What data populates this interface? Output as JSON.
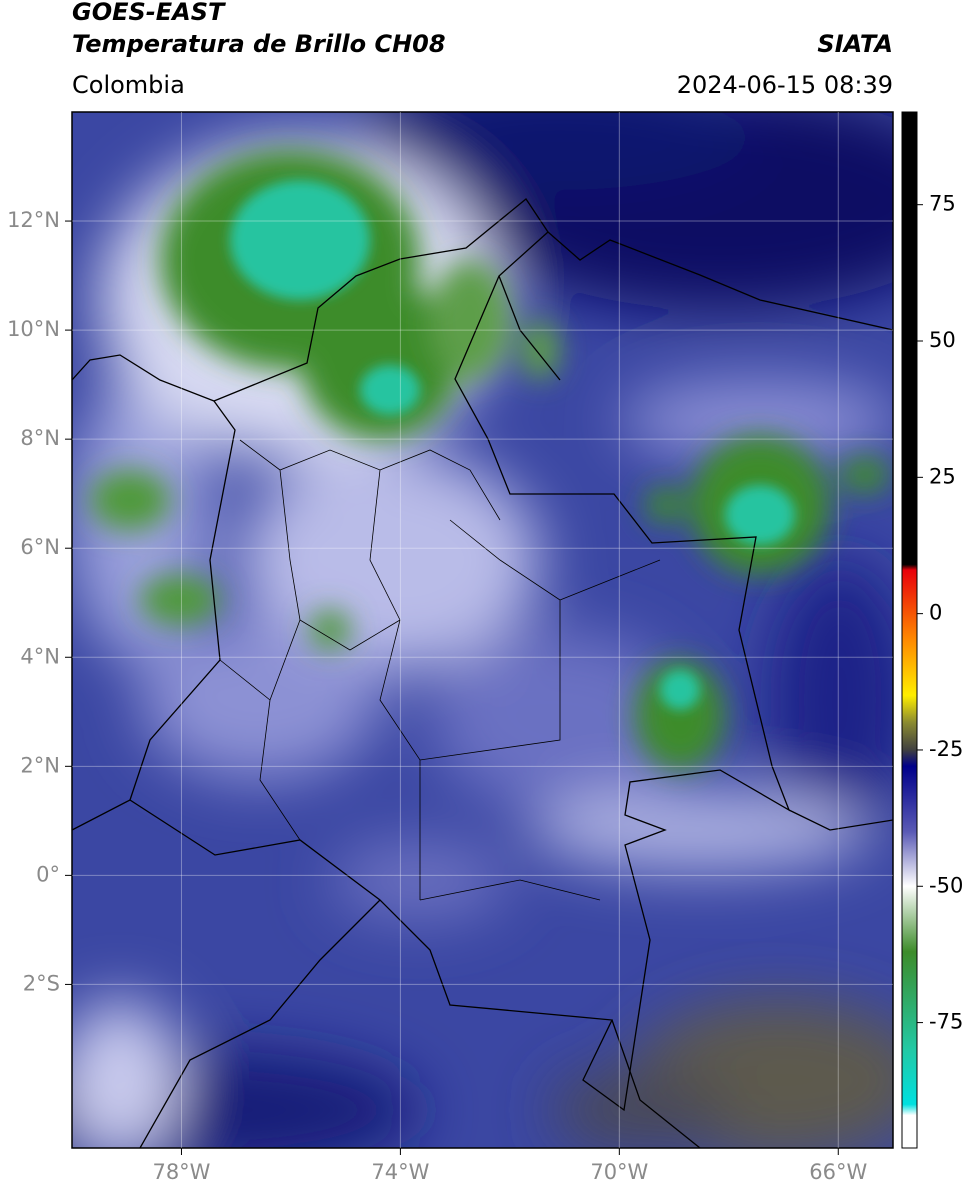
{
  "chart_data": {
    "type": "map",
    "title": "GOES-EAST",
    "subtitle": "Temperatura de Brillo CH08",
    "region": "Colombia",
    "source": "SIATA",
    "timestamp": "2024-06-15 08:39",
    "xlim": [
      -80,
      -65
    ],
    "ylim": [
      -5,
      14
    ],
    "xticks": [
      {
        "value": -78,
        "label": "78°W"
      },
      {
        "value": -74,
        "label": "74°W"
      },
      {
        "value": -70,
        "label": "70°W"
      },
      {
        "value": -66,
        "label": "66°W"
      }
    ],
    "yticks": [
      {
        "value": 12,
        "label": "12°N"
      },
      {
        "value": 10,
        "label": "10°N"
      },
      {
        "value": 8,
        "label": "8°N"
      },
      {
        "value": 6,
        "label": "6°N"
      },
      {
        "value": 4,
        "label": "4°N"
      },
      {
        "value": 2,
        "label": "2°N"
      },
      {
        "value": 0,
        "label": "0°"
      },
      {
        "value": -2,
        "label": "2°S"
      }
    ],
    "grid": true,
    "colorbar": {
      "clim": [
        -98,
        92
      ],
      "ticks": [
        75,
        50,
        25,
        0,
        -25,
        -50,
        -75
      ],
      "stops": [
        {
          "value": 92,
          "color": "#000000"
        },
        {
          "value": 9,
          "color": "#000000"
        },
        {
          "value": 8,
          "color": "#e8000b"
        },
        {
          "value": -5,
          "color": "#ff8c00"
        },
        {
          "value": -15,
          "color": "#ffee00"
        },
        {
          "value": -20,
          "color": "#8a8a30"
        },
        {
          "value": -25,
          "color": "#404040"
        },
        {
          "value": -28,
          "color": "#00008a"
        },
        {
          "value": -40,
          "color": "#5a5ab5"
        },
        {
          "value": -50,
          "color": "#ffffff"
        },
        {
          "value": -62,
          "color": "#3d8c2a"
        },
        {
          "value": -80,
          "color": "#22c9a5"
        },
        {
          "value": -90,
          "color": "#00e0e0"
        },
        {
          "value": -92,
          "color": "#ffffff"
        },
        {
          "value": -98,
          "color": "#ffffff"
        }
      ]
    }
  }
}
